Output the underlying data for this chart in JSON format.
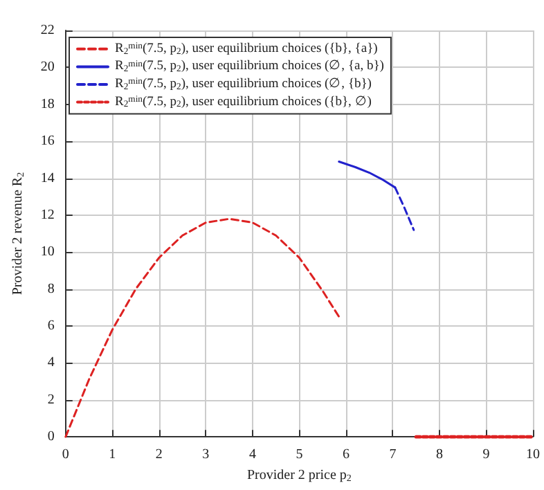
{
  "chart_data": {
    "type": "line",
    "xlabel": "Provider 2 price p$_{2}$",
    "ylabel": "Provider 2 revenue R$_{2}$",
    "xlim": [
      0,
      10
    ],
    "xticks": [
      0,
      1,
      2,
      3,
      4,
      5,
      6,
      7,
      8,
      9,
      10
    ],
    "ylim": [
      0,
      22
    ],
    "yticks": [
      0,
      2,
      4,
      6,
      8,
      10,
      12,
      14,
      16,
      18,
      20,
      22
    ],
    "grid": true,
    "legend": "top left",
    "marker": "none",
    "series": [
      {
        "name": "R$_{2}$$^{min}$(7.5, p$_{2}$), user equilibrium choices ({b}, {a})",
        "color": "#dd2222",
        "line_style": "dashed",
        "x": [
          0,
          0.5,
          1,
          1.5,
          2,
          2.5,
          3,
          3.5,
          4,
          4.5,
          5,
          5.5,
          5.85
        ],
        "values": [
          0,
          3.1,
          5.8,
          8,
          9.7,
          10.9,
          11.6,
          11.8,
          11.6,
          10.9,
          9.7,
          7.9,
          6.5
        ]
      },
      {
        "name": "R$_{2}$$^{min}$(7.5, p$_{2}$), user equilibrium choices (∅, {a, b})",
        "color": "#2222cc",
        "line_style": "solid",
        "x": [
          5.85,
          6.2,
          6.5,
          6.8,
          7.05
        ],
        "values": [
          14.9,
          14.6,
          14.3,
          13.9,
          13.5
        ]
      },
      {
        "name": "R$_{2}$$^{min}$(7.5, p$_{2}$), user equilibrium choices (∅, {b})",
        "color": "#2222cc",
        "line_style": "dashed",
        "x": [
          7.05,
          7.25,
          7.45
        ],
        "values": [
          13.5,
          12.4,
          11.2
        ]
      },
      {
        "name": "R$_{2}$$^{min}$(7.5, p$_{2}$), user equilibrium choices ({b}, ∅)",
        "color": "#dd2222",
        "line_style": "dotted",
        "x": [
          7.5,
          8,
          8.5,
          9,
          9.5,
          10
        ],
        "values": [
          0,
          0,
          0,
          0,
          0,
          0
        ]
      }
    ]
  }
}
